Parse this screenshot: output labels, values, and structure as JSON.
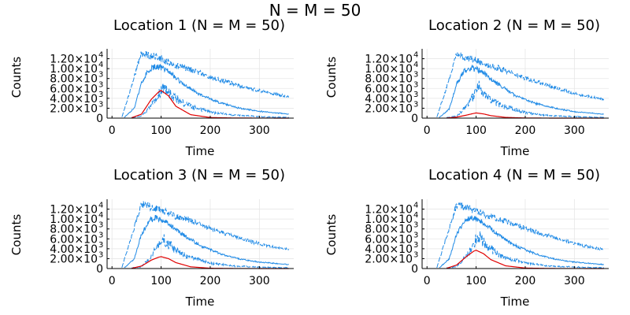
{
  "figure": {
    "suptitle": "N = M = 50"
  },
  "colors": {
    "band": "#1f8ae6",
    "mean": "#e00000"
  },
  "chart_data": [
    {
      "type": "line",
      "title": "Location 1 (N = M = 50)",
      "xlabel": "Time",
      "ylabel": "Counts",
      "xlim": [
        -10,
        370
      ],
      "ylim": [
        0,
        14000
      ],
      "xticks": [
        0,
        100,
        200,
        300
      ],
      "yticks": [
        {
          "value": 0,
          "label": "0"
        },
        {
          "value": 2000,
          "label": "2.00×10",
          "exp": "3"
        },
        {
          "value": 4000,
          "label": "4.00×10",
          "exp": "3"
        },
        {
          "value": 6000,
          "label": "6.00×10",
          "exp": "3"
        },
        {
          "value": 8000,
          "label": "8.00×10",
          "exp": "3"
        },
        {
          "value": 10000,
          "label": "1.00×10",
          "exp": "4"
        },
        {
          "value": 12000,
          "label": "1.20×10",
          "exp": "4"
        }
      ],
      "grid": true,
      "series": [
        {
          "role": "upper",
          "style": "dashed",
          "x": [
            20,
            40,
            60,
            80,
            100,
            130,
            160,
            200,
            250,
            300,
            360
          ],
          "y": [
            200,
            6500,
            13200,
            12600,
            11900,
            10600,
            9800,
            8300,
            6800,
            5500,
            4300
          ]
        },
        {
          "role": "median",
          "style": "solid",
          "x": [
            25,
            45,
            60,
            75,
            90,
            110,
            140,
            180,
            220,
            260,
            300,
            360
          ],
          "y": [
            150,
            2000,
            7000,
            9800,
            10500,
            9800,
            7300,
            4700,
            3100,
            2000,
            1400,
            800
          ]
        },
        {
          "role": "lower",
          "style": "dashed",
          "x": [
            40,
            60,
            80,
            95,
            105,
            125,
            150,
            200,
            250,
            300,
            360
          ],
          "y": [
            100,
            400,
            2500,
            5000,
            6000,
            4300,
            2700,
            1200,
            600,
            300,
            150
          ]
        },
        {
          "role": "mean",
          "style": "solid",
          "x": [
            40,
            60,
            80,
            95,
            100,
            115,
            130,
            160,
            200,
            250,
            360
          ],
          "y": [
            80,
            800,
            3800,
            5300,
            5600,
            4500,
            2400,
            700,
            120,
            20,
            0
          ]
        }
      ]
    },
    {
      "type": "line",
      "title": "Location 2 (N = M = 50)",
      "xlabel": "Time",
      "ylabel": "Counts",
      "xlim": [
        -10,
        370
      ],
      "ylim": [
        0,
        14000
      ],
      "xticks": [
        0,
        100,
        200,
        300
      ],
      "yticks": [
        {
          "value": 0,
          "label": "0"
        },
        {
          "value": 2000,
          "label": "2.00×10",
          "exp": "3"
        },
        {
          "value": 4000,
          "label": "4.00×10",
          "exp": "3"
        },
        {
          "value": 6000,
          "label": "6.00×10",
          "exp": "3"
        },
        {
          "value": 8000,
          "label": "8.00×10",
          "exp": "3"
        },
        {
          "value": 10000,
          "label": "1.00×10",
          "exp": "4"
        },
        {
          "value": 12000,
          "label": "1.20×10",
          "exp": "4"
        }
      ],
      "grid": true,
      "series": [
        {
          "role": "upper",
          "style": "dashed",
          "x": [
            20,
            40,
            60,
            80,
            100,
            130,
            160,
            200,
            250,
            300,
            360
          ],
          "y": [
            200,
            6300,
            12800,
            12200,
            11700,
            10500,
            9600,
            8100,
            6500,
            5000,
            3700
          ]
        },
        {
          "role": "median",
          "style": "solid",
          "x": [
            25,
            45,
            60,
            75,
            90,
            110,
            140,
            180,
            220,
            260,
            300,
            360
          ],
          "y": [
            150,
            1800,
            6800,
            9500,
            10200,
            9500,
            7100,
            4600,
            3000,
            2000,
            1300,
            800
          ]
        },
        {
          "role": "lower",
          "style": "dashed",
          "x": [
            40,
            60,
            80,
            95,
            105,
            125,
            150,
            200,
            250,
            300,
            360
          ],
          "y": [
            100,
            400,
            2300,
            4500,
            6500,
            4000,
            2600,
            1100,
            500,
            300,
            150
          ]
        },
        {
          "role": "mean",
          "style": "solid",
          "x": [
            40,
            60,
            80,
            95,
            100,
            115,
            130,
            160,
            200,
            250,
            360
          ],
          "y": [
            30,
            200,
            600,
            950,
            1050,
            850,
            500,
            150,
            30,
            5,
            0
          ]
        }
      ]
    },
    {
      "type": "line",
      "title": "Location 3 (N = M = 50)",
      "xlabel": "Time",
      "ylabel": "Counts",
      "xlim": [
        -10,
        370
      ],
      "ylim": [
        0,
        14000
      ],
      "xticks": [
        0,
        100,
        200,
        300
      ],
      "yticks": [
        {
          "value": 0,
          "label": "0"
        },
        {
          "value": 2000,
          "label": "2.00×10",
          "exp": "3"
        },
        {
          "value": 4000,
          "label": "4.00×10",
          "exp": "3"
        },
        {
          "value": 6000,
          "label": "6.00×10",
          "exp": "3"
        },
        {
          "value": 8000,
          "label": "8.00×10",
          "exp": "3"
        },
        {
          "value": 10000,
          "label": "1.00×10",
          "exp": "4"
        },
        {
          "value": 12000,
          "label": "1.20×10",
          "exp": "4"
        }
      ],
      "grid": true,
      "series": [
        {
          "role": "upper",
          "style": "dashed",
          "x": [
            20,
            40,
            60,
            80,
            100,
            130,
            160,
            200,
            250,
            300,
            360
          ],
          "y": [
            200,
            6500,
            13000,
            12400,
            11800,
            10500,
            9700,
            8100,
            6400,
            5000,
            3800
          ]
        },
        {
          "role": "median",
          "style": "solid",
          "x": [
            25,
            45,
            60,
            75,
            90,
            110,
            140,
            180,
            220,
            260,
            300,
            360
          ],
          "y": [
            150,
            1900,
            6900,
            9600,
            10300,
            9600,
            7200,
            4600,
            3000,
            1900,
            1300,
            800
          ]
        },
        {
          "role": "lower",
          "style": "dashed",
          "x": [
            40,
            60,
            80,
            95,
            105,
            125,
            150,
            200,
            250,
            300,
            360
          ],
          "y": [
            100,
            400,
            2400,
            4800,
            5800,
            4200,
            2600,
            1100,
            500,
            300,
            150
          ]
        },
        {
          "role": "mean",
          "style": "solid",
          "x": [
            40,
            60,
            80,
            95,
            100,
            115,
            130,
            160,
            200,
            250,
            360
          ],
          "y": [
            50,
            500,
            1700,
            2300,
            2400,
            2000,
            1200,
            350,
            60,
            10,
            0
          ]
        }
      ]
    },
    {
      "type": "line",
      "title": "Location 4 (N = M = 50)",
      "xlabel": "Time",
      "ylabel": "Counts",
      "xlim": [
        -10,
        370
      ],
      "ylim": [
        0,
        14000
      ],
      "xticks": [
        0,
        100,
        200,
        300
      ],
      "yticks": [
        {
          "value": 0,
          "label": "0"
        },
        {
          "value": 2000,
          "label": "2.00×10",
          "exp": "3"
        },
        {
          "value": 4000,
          "label": "4.00×10",
          "exp": "3"
        },
        {
          "value": 6000,
          "label": "6.00×10",
          "exp": "3"
        },
        {
          "value": 8000,
          "label": "8.00×10",
          "exp": "3"
        },
        {
          "value": 10000,
          "label": "1.00×10",
          "exp": "4"
        },
        {
          "value": 12000,
          "label": "1.20×10",
          "exp": "4"
        }
      ],
      "grid": true,
      "series": [
        {
          "role": "upper",
          "style": "dashed",
          "x": [
            20,
            40,
            60,
            80,
            100,
            130,
            160,
            200,
            250,
            300,
            360
          ],
          "y": [
            200,
            6500,
            12900,
            12300,
            11700,
            10400,
            9600,
            8100,
            6500,
            5000,
            3800
          ]
        },
        {
          "role": "median",
          "style": "solid",
          "x": [
            25,
            45,
            60,
            75,
            90,
            110,
            140,
            180,
            220,
            260,
            300,
            360
          ],
          "y": [
            150,
            1900,
            6900,
            9600,
            10300,
            9600,
            7200,
            4600,
            3000,
            1900,
            1300,
            800
          ]
        },
        {
          "role": "lower",
          "style": "dashed",
          "x": [
            40,
            60,
            80,
            95,
            105,
            125,
            150,
            200,
            250,
            300,
            360
          ],
          "y": [
            100,
            400,
            2400,
            5000,
            6700,
            4300,
            2600,
            1100,
            500,
            300,
            150
          ]
        },
        {
          "role": "mean",
          "style": "solid",
          "x": [
            40,
            60,
            80,
            95,
            100,
            115,
            130,
            160,
            200,
            250,
            360
          ],
          "y": [
            60,
            700,
            2400,
            3500,
            3700,
            3000,
            1800,
            550,
            100,
            15,
            0
          ]
        }
      ]
    }
  ]
}
